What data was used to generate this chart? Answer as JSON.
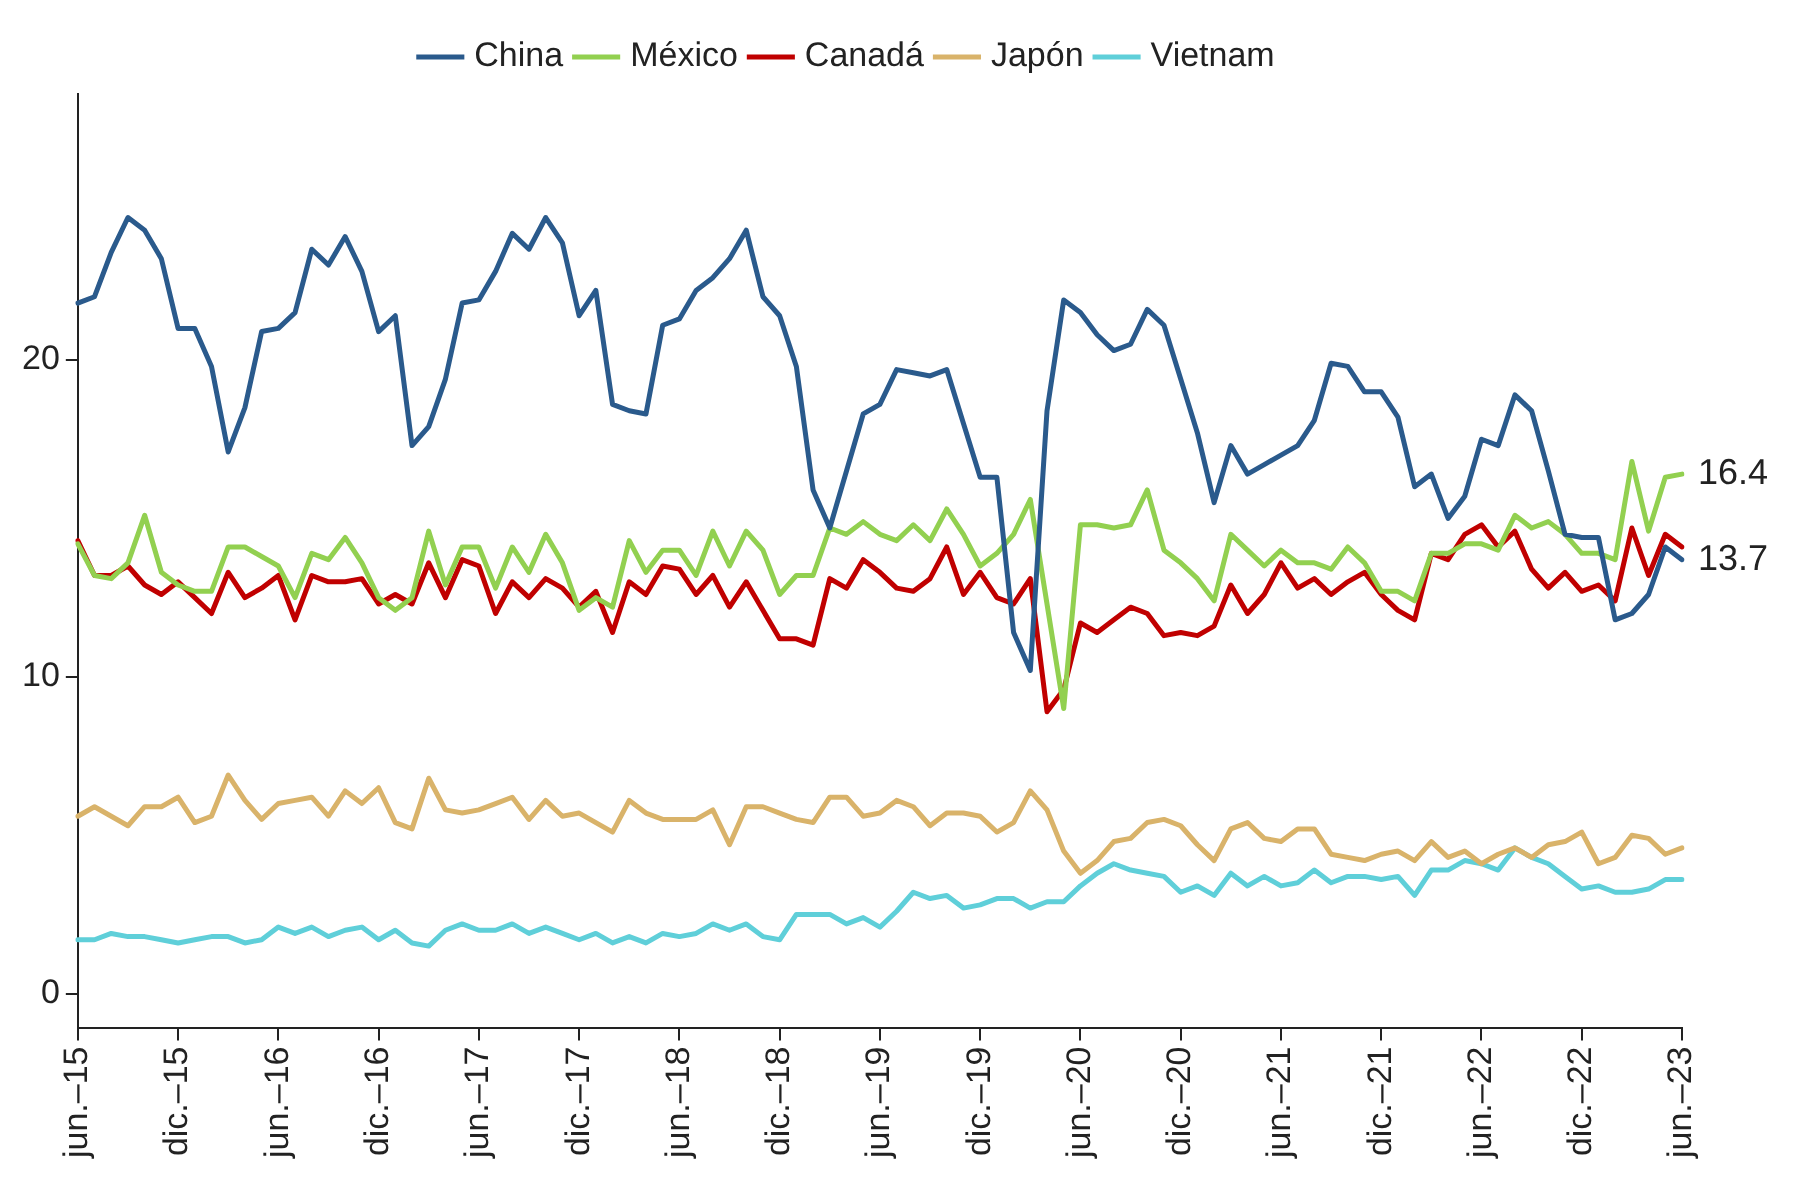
{
  "chart_data": {
    "type": "line",
    "categories": [
      "jun.–15",
      null,
      null,
      null,
      null,
      null,
      "dic.–15",
      null,
      null,
      null,
      null,
      null,
      "jun.–16",
      null,
      null,
      null,
      null,
      null,
      "dic.–16",
      null,
      null,
      null,
      null,
      null,
      "jun.–17",
      null,
      null,
      null,
      null,
      null,
      "dic.–17",
      null,
      null,
      null,
      null,
      null,
      "jun.–18",
      null,
      null,
      null,
      null,
      null,
      "dic.–18",
      null,
      null,
      null,
      null,
      null,
      "jun.–19",
      null,
      null,
      null,
      null,
      null,
      "dic.–19",
      null,
      null,
      null,
      null,
      null,
      "jun.–20",
      null,
      null,
      null,
      null,
      null,
      "dic.–20",
      null,
      null,
      null,
      null,
      null,
      "jun.–21",
      null,
      null,
      null,
      null,
      null,
      "dic.–21",
      null,
      null,
      null,
      null,
      null,
      "jun.–22",
      null,
      null,
      null,
      null,
      null,
      "dic.–22",
      null,
      null,
      null,
      null,
      null,
      "jun.–23"
    ],
    "series": [
      {
        "name": "China",
        "color": "#2a5a8c",
        "values": [
          21.8,
          22.0,
          23.4,
          24.5,
          24.1,
          23.2,
          21.0,
          21.0,
          19.8,
          17.1,
          18.5,
          20.9,
          21.0,
          21.5,
          23.5,
          23.0,
          23.9,
          22.8,
          20.9,
          21.4,
          17.3,
          17.9,
          19.4,
          21.8,
          21.9,
          22.8,
          24.0,
          23.5,
          24.5,
          23.7,
          21.4,
          22.2,
          18.6,
          18.4,
          18.3,
          21.1,
          21.3,
          22.2,
          22.6,
          23.2,
          24.1,
          22.0,
          21.4,
          19.8,
          15.9,
          14.7,
          16.5,
          18.3,
          18.6,
          19.7,
          19.6,
          19.5,
          19.7,
          18.0,
          16.3,
          16.3,
          11.4,
          10.2,
          18.4,
          21.9,
          21.5,
          20.8,
          20.3,
          20.5,
          21.6,
          21.1,
          19.4,
          17.7,
          15.5,
          17.3,
          16.4,
          16.7,
          17.0,
          17.3,
          18.1,
          19.9,
          19.8,
          19.0,
          19.0,
          18.2,
          16.0,
          16.4,
          15.0,
          15.7,
          17.5,
          17.3,
          18.9,
          18.4,
          16.5,
          14.5,
          14.4,
          14.4,
          11.8,
          12.0,
          12.6,
          14.1,
          13.7
        ],
        "value_labels": [
          null,
          null,
          null,
          null,
          null,
          null,
          null,
          null,
          null,
          null,
          null,
          null,
          null,
          null,
          null,
          null,
          null,
          null,
          null,
          null,
          null,
          null,
          null,
          null,
          null,
          null,
          null,
          null,
          null,
          null,
          null,
          null,
          null,
          null,
          null,
          null,
          null,
          null,
          null,
          null,
          null,
          null,
          null,
          null,
          null,
          null,
          null,
          null,
          null,
          null,
          null,
          null,
          null,
          null,
          null,
          null,
          null,
          null,
          null,
          null,
          null,
          null,
          null,
          null,
          null,
          null,
          null,
          null,
          null,
          null,
          null,
          null,
          null,
          null,
          null,
          null,
          null,
          null,
          null,
          null,
          null,
          null,
          null,
          null,
          null,
          null,
          null,
          null,
          null,
          null,
          null,
          null,
          null,
          null,
          null,
          null,
          "13.7"
        ]
      },
      {
        "name": "México",
        "color": "#92d050",
        "values": [
          14.2,
          13.2,
          13.1,
          13.6,
          15.1,
          13.3,
          12.9,
          12.7,
          12.7,
          14.1,
          14.1,
          13.8,
          13.5,
          12.5,
          13.9,
          13.7,
          14.4,
          13.6,
          12.5,
          12.1,
          12.5,
          14.6,
          12.9,
          14.1,
          14.1,
          12.8,
          14.1,
          13.3,
          14.5,
          13.6,
          12.1,
          12.5,
          12.2,
          14.3,
          13.3,
          14.0,
          14.0,
          13.2,
          14.6,
          13.5,
          14.6,
          14.0,
          12.6,
          13.2,
          13.2,
          14.7,
          14.5,
          14.9,
          14.5,
          14.3,
          14.8,
          14.3,
          15.3,
          14.5,
          13.5,
          13.9,
          14.5,
          15.6,
          12.3,
          9.0,
          14.8,
          14.8,
          14.7,
          14.8,
          15.9,
          14.0,
          13.6,
          13.1,
          12.4,
          14.5,
          14.0,
          13.5,
          14.0,
          13.6,
          13.6,
          13.4,
          14.1,
          13.6,
          12.7,
          12.7,
          12.4,
          13.9,
          13.9,
          14.2,
          14.2,
          14.0,
          15.1,
          14.7,
          14.9,
          14.5,
          13.9,
          13.9,
          13.7,
          16.8,
          14.6,
          16.3,
          16.4
        ],
        "value_labels": [
          null,
          null,
          null,
          null,
          null,
          null,
          null,
          null,
          null,
          null,
          null,
          null,
          null,
          null,
          null,
          null,
          null,
          null,
          null,
          null,
          null,
          null,
          null,
          null,
          null,
          null,
          null,
          null,
          null,
          null,
          null,
          null,
          null,
          null,
          null,
          null,
          null,
          null,
          null,
          null,
          null,
          null,
          null,
          null,
          null,
          null,
          null,
          null,
          null,
          null,
          null,
          null,
          null,
          null,
          null,
          null,
          null,
          null,
          null,
          null,
          null,
          null,
          null,
          null,
          null,
          null,
          null,
          null,
          null,
          null,
          null,
          null,
          null,
          null,
          null,
          null,
          null,
          null,
          null,
          null,
          null,
          null,
          null,
          null,
          null,
          null,
          null,
          null,
          null,
          null,
          null,
          null,
          null,
          null,
          null,
          null,
          "16.4"
        ]
      },
      {
        "name": "Canadá",
        "color": "#c00000",
        "values": [
          14.3,
          13.2,
          13.2,
          13.5,
          12.9,
          12.6,
          13.0,
          12.5,
          12.0,
          13.3,
          12.5,
          12.8,
          13.2,
          11.8,
          13.2,
          13.0,
          13.0,
          13.1,
          12.3,
          12.6,
          12.3,
          13.6,
          12.5,
          13.7,
          13.5,
          12.0,
          13.0,
          12.5,
          13.1,
          12.8,
          12.2,
          12.7,
          11.4,
          13.0,
          12.6,
          13.5,
          13.4,
          12.6,
          13.2,
          12.2,
          13.0,
          12.1,
          11.2,
          11.2,
          11.0,
          13.1,
          12.8,
          13.7,
          13.3,
          12.8,
          12.7,
          13.1,
          14.1,
          12.6,
          13.3,
          12.5,
          12.3,
          13.1,
          8.9,
          9.6,
          11.7,
          11.4,
          11.8,
          12.2,
          12.0,
          11.3,
          11.4,
          11.3,
          11.6,
          12.9,
          12.0,
          12.6,
          13.6,
          12.8,
          13.1,
          12.6,
          13.0,
          13.3,
          12.6,
          12.1,
          11.8,
          13.9,
          13.7,
          14.5,
          14.8,
          14.1,
          14.6,
          13.4,
          12.8,
          13.3,
          12.7,
          12.9,
          12.4,
          14.7,
          13.2,
          14.5,
          14.1
        ]
      },
      {
        "name": "Japón",
        "color": "#d9b36a",
        "values": [
          5.6,
          5.9,
          5.6,
          5.3,
          5.9,
          5.9,
          6.2,
          5.4,
          5.6,
          6.9,
          6.1,
          5.5,
          6.0,
          6.1,
          6.2,
          5.6,
          6.4,
          6.0,
          6.5,
          5.4,
          5.2,
          6.8,
          5.8,
          5.7,
          5.8,
          6.0,
          6.2,
          5.5,
          6.1,
          5.6,
          5.7,
          5.4,
          5.1,
          6.1,
          5.7,
          5.5,
          5.5,
          5.5,
          5.8,
          4.7,
          5.9,
          5.9,
          5.7,
          5.5,
          5.4,
          6.2,
          6.2,
          5.6,
          5.7,
          6.1,
          5.9,
          5.3,
          5.7,
          5.7,
          5.6,
          5.1,
          5.4,
          6.4,
          5.8,
          4.5,
          3.8,
          4.2,
          4.8,
          4.9,
          5.4,
          5.5,
          5.3,
          4.7,
          4.2,
          5.2,
          5.4,
          4.9,
          4.8,
          5.2,
          5.2,
          4.4,
          4.3,
          4.2,
          4.4,
          4.5,
          4.2,
          4.8,
          4.3,
          4.5,
          4.1,
          4.4,
          4.6,
          4.3,
          4.7,
          4.8,
          5.1,
          4.1,
          4.3,
          5.0,
          4.9,
          4.4,
          4.6
        ]
      },
      {
        "name": "Vietnam",
        "color": "#5fcfd9",
        "values": [
          1.7,
          1.7,
          1.9,
          1.8,
          1.8,
          1.7,
          1.6,
          1.7,
          1.8,
          1.8,
          1.6,
          1.7,
          2.1,
          1.9,
          2.1,
          1.8,
          2.0,
          2.1,
          1.7,
          2.0,
          1.6,
          1.5,
          2.0,
          2.2,
          2.0,
          2.0,
          2.2,
          1.9,
          2.1,
          1.9,
          1.7,
          1.9,
          1.6,
          1.8,
          1.6,
          1.9,
          1.8,
          1.9,
          2.2,
          2.0,
          2.2,
          1.8,
          1.7,
          2.5,
          2.5,
          2.5,
          2.2,
          2.4,
          2.1,
          2.6,
          3.2,
          3.0,
          3.1,
          2.7,
          2.8,
          3.0,
          3.0,
          2.7,
          2.9,
          2.9,
          3.4,
          3.8,
          4.1,
          3.9,
          3.8,
          3.7,
          3.2,
          3.4,
          3.1,
          3.8,
          3.4,
          3.7,
          3.4,
          3.5,
          3.9,
          3.5,
          3.7,
          3.7,
          3.6,
          3.7,
          3.1,
          3.9,
          3.9,
          4.2,
          4.1,
          3.9,
          4.6,
          4.3,
          4.1,
          3.7,
          3.3,
          3.4,
          3.2,
          3.2,
          3.3,
          3.6,
          3.6
        ]
      }
    ],
    "ylim": [
      -1.1,
      28.4
    ],
    "yticks": [
      0,
      10,
      20
    ],
    "grid": false,
    "legend": "top",
    "marker": "none",
    "line_style": "solid"
  }
}
